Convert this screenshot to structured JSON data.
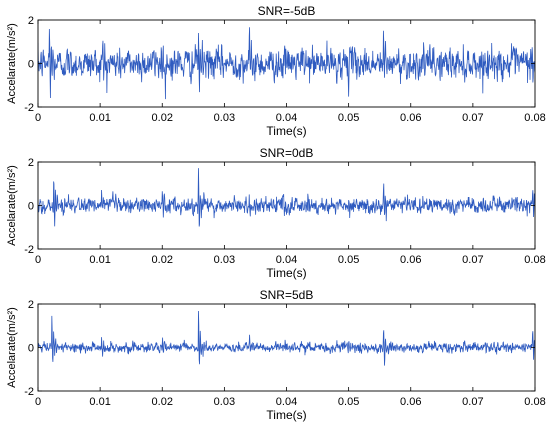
{
  "chart_data": [
    {
      "type": "line",
      "title": "SNR=-5dB",
      "xlabel": "Time(s)",
      "ylabel": "Accelarate(m/s²)",
      "xlim": [
        0,
        0.08
      ],
      "ylim": [
        -2,
        2
      ],
      "xticks": [
        "0",
        "0.01",
        "0.02",
        "0.03",
        "0.04",
        "0.05",
        "0.06",
        "0.07",
        "0.08"
      ],
      "yticks": [
        "-2",
        "0",
        "2"
      ],
      "grid": false,
      "line_color": "#2f5bc0",
      "noise_amplitude": 0.62,
      "impulses": [
        {
          "t": 0.0018,
          "amp": 1.9
        },
        {
          "t": 0.0104,
          "amp": 1.0
        },
        {
          "t": 0.0198,
          "amp": 1.1
        },
        {
          "t": 0.0258,
          "amp": 1.9
        },
        {
          "t": 0.034,
          "amp": 1.0
        },
        {
          "t": 0.0498,
          "amp": 1.0
        },
        {
          "t": 0.0556,
          "amp": 1.3
        },
        {
          "t": 0.0795,
          "amp": 1.3
        }
      ]
    },
    {
      "type": "line",
      "title": "SNR=0dB",
      "xlabel": "Time(s)",
      "ylabel": "Accelarate(m/s²)",
      "xlim": [
        0,
        0.08
      ],
      "ylim": [
        -2,
        2
      ],
      "xticks": [
        "0",
        "0.01",
        "0.02",
        "0.03",
        "0.04",
        "0.05",
        "0.06",
        "0.07",
        "0.08"
      ],
      "yticks": [
        "-2",
        "0",
        "2"
      ],
      "grid": false,
      "line_color": "#2f5bc0",
      "noise_amplitude": 0.33,
      "impulses": [
        {
          "t": 0.0025,
          "amp": 1.7
        },
        {
          "t": 0.0102,
          "amp": 0.6
        },
        {
          "t": 0.02,
          "amp": 0.8
        },
        {
          "t": 0.0258,
          "amp": 1.8
        },
        {
          "t": 0.034,
          "amp": 0.5
        },
        {
          "t": 0.05,
          "amp": 0.5
        },
        {
          "t": 0.0556,
          "amp": 0.9
        },
        {
          "t": 0.0796,
          "amp": 0.9
        }
      ]
    },
    {
      "type": "line",
      "title": "SNR=5dB",
      "xlabel": "Time(s)",
      "ylabel": "Accelarate(m/s²)",
      "xlim": [
        0,
        0.08
      ],
      "ylim": [
        -2,
        2
      ],
      "xticks": [
        "0",
        "0.01",
        "0.02",
        "0.03",
        "0.04",
        "0.05",
        "0.06",
        "0.07",
        "0.08"
      ],
      "yticks": [
        "-2",
        "0",
        "2"
      ],
      "grid": false,
      "line_color": "#2f5bc0",
      "noise_amplitude": 0.2,
      "impulses": [
        {
          "t": 0.0022,
          "amp": 1.6
        },
        {
          "t": 0.0102,
          "amp": 0.5
        },
        {
          "t": 0.02,
          "amp": 0.5
        },
        {
          "t": 0.0258,
          "amp": 1.9
        },
        {
          "t": 0.034,
          "amp": 0.4
        },
        {
          "t": 0.05,
          "amp": 0.4
        },
        {
          "t": 0.0556,
          "amp": 1.1
        },
        {
          "t": 0.0796,
          "amp": 0.9
        }
      ]
    }
  ]
}
